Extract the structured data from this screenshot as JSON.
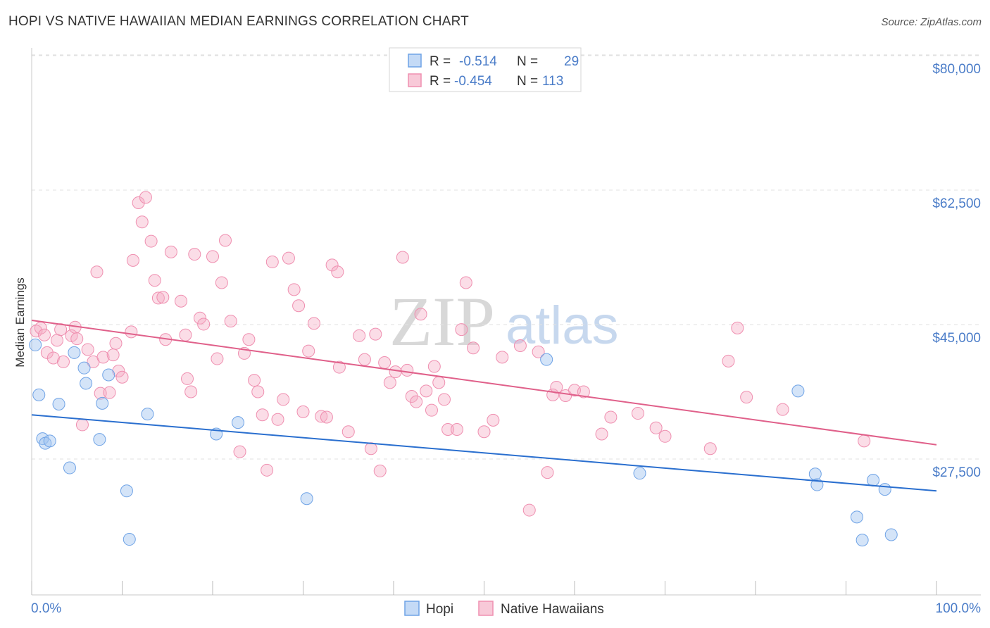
{
  "title": "HOPI VS NATIVE HAWAIIAN MEDIAN EARNINGS CORRELATION CHART",
  "source": "Source: ZipAtlas.com",
  "watermark": {
    "zip": "ZIP",
    "atlas": "atlas"
  },
  "colors": {
    "hopi": "#6fa3e6",
    "hopi_line": "#2a6fcf",
    "hawaiian": "#ef8fb0",
    "hawaiian_line": "#e0608a",
    "tick": "#4a7cc8"
  },
  "legend_top": {
    "r_label": "R =",
    "n_label": "N =",
    "rows": [
      {
        "series": "Hopi",
        "r": "-0.514",
        "n": "29"
      },
      {
        "series": "Native Hawaiians",
        "r": "-0.454",
        "n": "113"
      }
    ]
  },
  "chart_data": {
    "type": "scatter",
    "title": "HOPI VS NATIVE HAWAIIAN MEDIAN EARNINGS CORRELATION CHART",
    "xlabel": "",
    "ylabel": "Median Earnings",
    "xlim": [
      0,
      100
    ],
    "ylim": [
      12000,
      82000
    ],
    "x_tick_labels": [
      "0.0%",
      "100.0%"
    ],
    "y_ticks": [
      27500,
      45000,
      62500,
      80000
    ],
    "y_tick_labels": [
      "$27,500",
      "$45,000",
      "$62,500",
      "$80,000"
    ],
    "legend": [
      "Hopi",
      "Native Hawaiians"
    ],
    "series": [
      {
        "name": "Hopi",
        "trend": {
          "x": [
            0,
            100
          ],
          "y": [
            34900,
            25000
          ]
        },
        "x": [
          0.4,
          0.8,
          1.2,
          1.5,
          2.0,
          3.0,
          4.2,
          4.7,
          5.8,
          6.0,
          7.5,
          7.8,
          8.5,
          10.5,
          10.8,
          12.8,
          20.4,
          22.8,
          30.4,
          56.9,
          67.2,
          84.7,
          86.6,
          86.8,
          91.2,
          91.8,
          93.0,
          94.3,
          95.0
        ],
        "y": [
          44000,
          37500,
          31800,
          31200,
          31500,
          36300,
          28000,
          43000,
          41000,
          39000,
          31700,
          36400,
          40100,
          25000,
          18700,
          35000,
          32400,
          33900,
          24000,
          42100,
          27300,
          38000,
          27200,
          25800,
          21600,
          18600,
          26400,
          25200,
          19300
        ]
      },
      {
        "name": "Native Hawaiians",
        "trend": {
          "x": [
            0,
            100
          ],
          "y": [
            47200,
            31000
          ]
        },
        "x": [
          0.5,
          1.0,
          1.4,
          1.7,
          2.4,
          2.8,
          3.2,
          3.5,
          4.4,
          4.8,
          5.0,
          5.6,
          6.2,
          6.8,
          7.2,
          7.6,
          7.9,
          8.6,
          9.0,
          9.3,
          9.6,
          10.0,
          11.0,
          11.2,
          11.8,
          12.2,
          12.6,
          13.2,
          13.6,
          14.0,
          14.5,
          14.8,
          15.4,
          16.5,
          17.0,
          17.2,
          17.6,
          18.0,
          18.6,
          19.0,
          20.0,
          20.5,
          21.0,
          21.4,
          22.0,
          23.0,
          23.5,
          24.0,
          24.6,
          25.0,
          25.5,
          26.0,
          26.6,
          27.2,
          27.8,
          28.4,
          29.0,
          29.5,
          30.0,
          30.6,
          31.2,
          32.0,
          32.6,
          33.2,
          33.8,
          34.0,
          35.0,
          36.2,
          36.8,
          37.5,
          38.0,
          38.5,
          39.0,
          39.6,
          40.2,
          41.0,
          41.5,
          42.0,
          42.5,
          43.0,
          43.6,
          44.2,
          44.5,
          45.0,
          45.6,
          46.0,
          47.0,
          47.5,
          48.0,
          48.8,
          50.0,
          51.0,
          52.0,
          54.0,
          55.0,
          56.0,
          57.0,
          57.6,
          58.0,
          59.0,
          60.0,
          61.0,
          63.0,
          64.0,
          67.0,
          69.0,
          70.0,
          75.0,
          77.0,
          78.0,
          79.0,
          83.0,
          92.0
        ],
        "y": [
          45800,
          46200,
          45300,
          43000,
          42300,
          44600,
          46000,
          41800,
          45200,
          46300,
          44800,
          33600,
          43400,
          41800,
          53500,
          37700,
          42400,
          37800,
          42700,
          44200,
          40600,
          39800,
          45700,
          55000,
          62500,
          60000,
          63200,
          57500,
          52400,
          50100,
          50200,
          44700,
          56100,
          49700,
          45300,
          39600,
          37900,
          55800,
          47500,
          46700,
          55500,
          42200,
          52100,
          57600,
          47100,
          30100,
          42900,
          44700,
          39400,
          37900,
          34900,
          27700,
          54800,
          34300,
          36900,
          55300,
          51200,
          49100,
          35300,
          43200,
          46800,
          34700,
          34600,
          54400,
          53500,
          41100,
          32700,
          45200,
          42100,
          30500,
          45400,
          27600,
          41700,
          39100,
          40500,
          55400,
          40700,
          37300,
          36600,
          48000,
          38000,
          35500,
          41200,
          39100,
          36900,
          33000,
          33000,
          46000,
          52100,
          43600,
          32700,
          34200,
          42400,
          43900,
          22500,
          43100,
          27400,
          37500,
          38500,
          37400,
          38100,
          37900,
          32400,
          34600,
          35100,
          33200,
          32100,
          30500,
          41900,
          46200,
          37200,
          35600,
          31500
        ]
      }
    ]
  }
}
